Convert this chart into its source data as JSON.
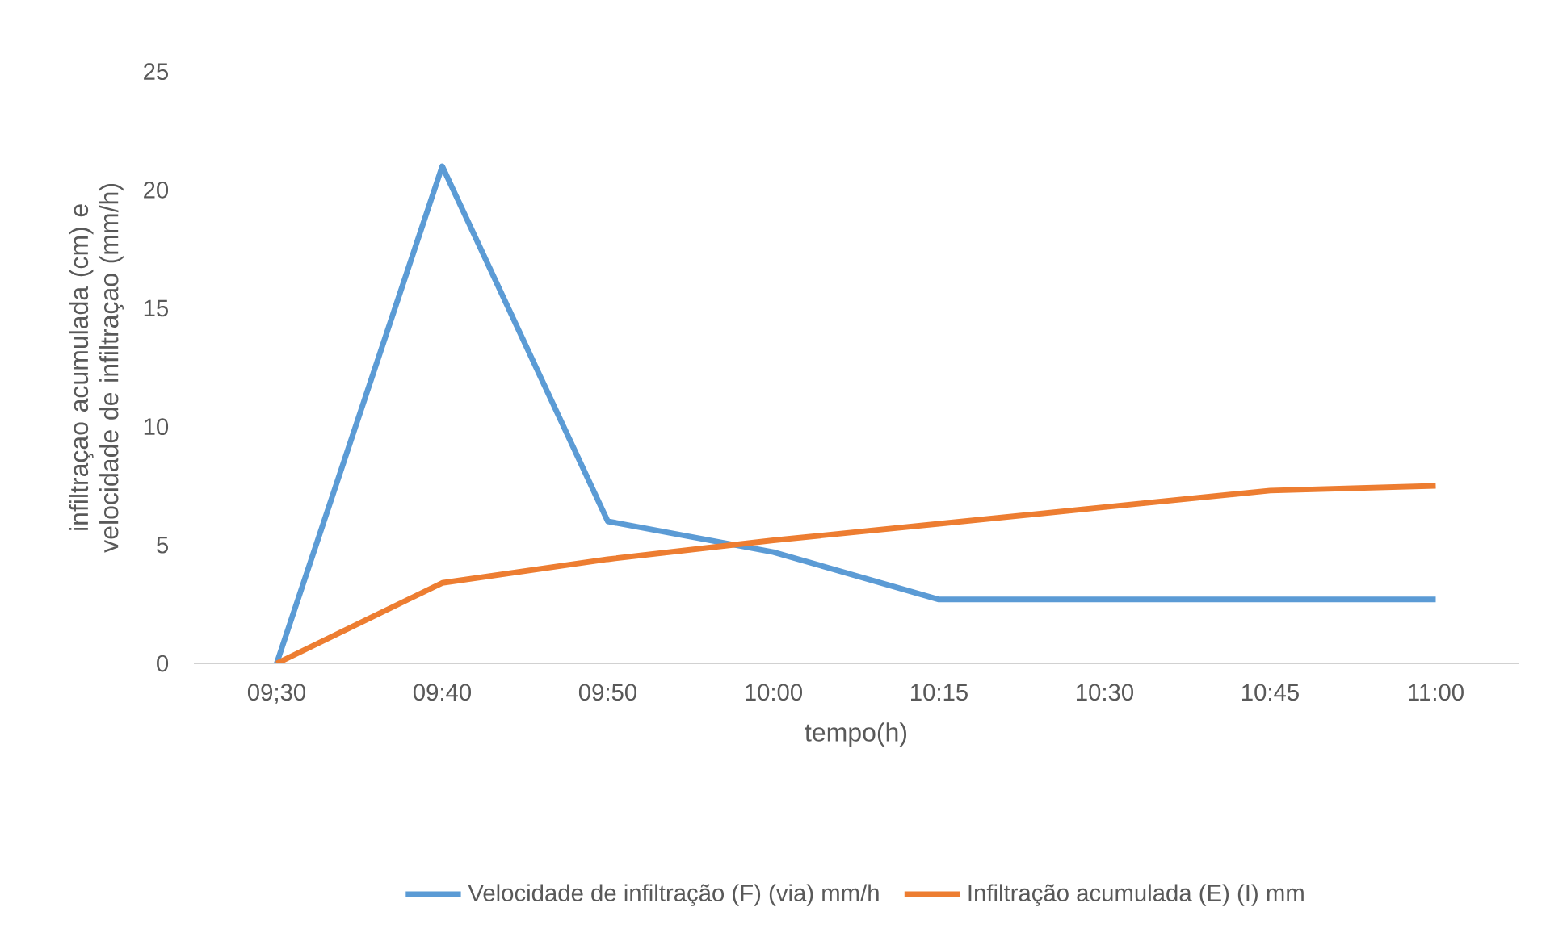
{
  "chart_data": {
    "type": "line",
    "xlabel": "tempo(h)",
    "ylabel": "infiltraçao acumulada (cm) e velocidade de infiltraçao (mm/h)",
    "categories": [
      "09;30",
      "09:40",
      "09:50",
      "10:00",
      "10:15",
      "10:30",
      "10:45",
      "11:00"
    ],
    "series": [
      {
        "name": "Velocidade de infiltração (F)  (via) mm/h",
        "color": "#5b9bd5",
        "values": [
          0,
          21,
          6,
          4.7,
          2.7,
          2.7,
          2.7,
          2.7
        ]
      },
      {
        "name": "Infiltração acumulada (E) (I) mm",
        "color": "#ed7d31",
        "values": [
          0,
          3.4,
          4.4,
          5.2,
          5.9,
          6.6,
          7.3,
          7.5
        ]
      }
    ],
    "ylim": [
      0,
      25
    ],
    "yticks": [
      0,
      5,
      10,
      15,
      20,
      25
    ],
    "grid": false,
    "legend": "bottom",
    "marker": "none",
    "line_style": "solid"
  }
}
